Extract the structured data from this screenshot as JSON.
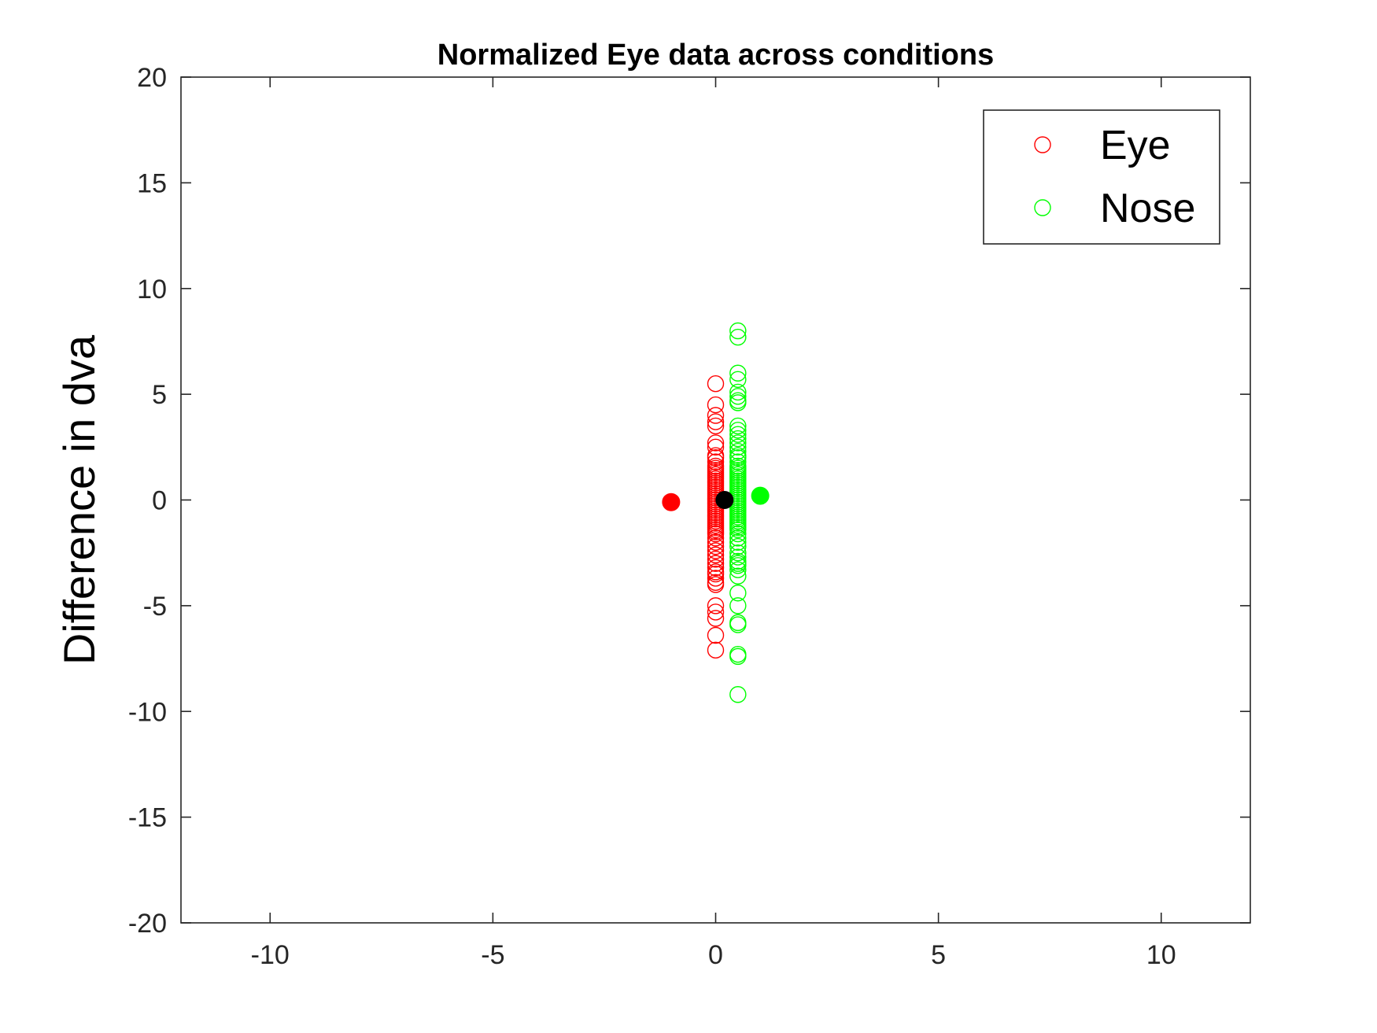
{
  "chart_data": {
    "type": "scatter",
    "title": "Normalized Eye data across conditions",
    "xlabel": "",
    "ylabel": "Difference in dva",
    "xlim": [
      -12,
      12
    ],
    "ylim": [
      -20,
      20
    ],
    "xticks": [
      -10,
      -5,
      0,
      5,
      10
    ],
    "yticks": [
      -20,
      -15,
      -10,
      -5,
      0,
      5,
      10,
      15,
      20
    ],
    "grid": false,
    "legend_position": "top-right",
    "legend": [
      {
        "label": "Eye",
        "color": "#ff0000",
        "marker": "open-circle"
      },
      {
        "label": "Nose",
        "color": "#00ff00",
        "marker": "open-circle"
      }
    ],
    "series": [
      {
        "name": "Eye",
        "color": "#ff0000",
        "marker": "open-circle",
        "x": 0,
        "y": [
          5.5,
          4.5,
          4.0,
          3.7,
          3.5,
          2.7,
          2.5,
          2.1,
          2.0,
          1.8,
          1.6,
          1.5,
          1.4,
          1.3,
          1.2,
          1.1,
          1.0,
          0.9,
          0.8,
          0.7,
          0.6,
          0.5,
          0.4,
          0.3,
          0.2,
          0.1,
          0.0,
          -0.1,
          -0.2,
          -0.3,
          -0.4,
          -0.5,
          -0.6,
          -0.7,
          -0.8,
          -0.9,
          -1.0,
          -1.1,
          -1.2,
          -1.3,
          -1.4,
          -1.5,
          -1.6,
          -1.8,
          -2.0,
          -2.2,
          -2.4,
          -2.6,
          -2.8,
          -3.0,
          -3.2,
          -3.4,
          -3.5,
          -3.7,
          -3.9,
          -4.0,
          -5.0,
          -5.3,
          -5.6,
          -6.4,
          -7.1
        ]
      },
      {
        "name": "Nose",
        "color": "#00ff00",
        "marker": "open-circle",
        "x": 0.5,
        "y": [
          8.0,
          7.7,
          6.0,
          5.7,
          5.1,
          4.9,
          4.7,
          4.6,
          3.5,
          3.3,
          3.1,
          2.9,
          2.7,
          2.5,
          2.3,
          2.1,
          2.0,
          1.8,
          1.6,
          1.5,
          1.4,
          1.3,
          1.2,
          1.1,
          1.0,
          0.9,
          0.8,
          0.7,
          0.6,
          0.5,
          0.4,
          0.3,
          0.2,
          0.1,
          0.0,
          -0.1,
          -0.2,
          -0.3,
          -0.4,
          -0.5,
          -0.6,
          -0.7,
          -0.8,
          -0.9,
          -1.0,
          -1.1,
          -1.2,
          -1.3,
          -1.4,
          -1.6,
          -1.8,
          -2.0,
          -2.2,
          -2.5,
          -2.7,
          -2.9,
          -3.0,
          -3.1,
          -3.3,
          -3.6,
          -4.4,
          -5.0,
          -5.8,
          -5.9,
          -7.3,
          -7.4,
          -9.2
        ]
      },
      {
        "name": "",
        "color": "#ff0000",
        "marker": "filled-circle",
        "points": [
          {
            "x": -1.0,
            "y": -0.1
          }
        ]
      },
      {
        "name": "",
        "color": "#000000",
        "marker": "filled-circle",
        "points": [
          {
            "x": 0.2,
            "y": 0.0
          }
        ]
      },
      {
        "name": "",
        "color": "#00ff00",
        "marker": "filled-circle",
        "points": [
          {
            "x": 1.0,
            "y": 0.2
          }
        ]
      }
    ]
  }
}
